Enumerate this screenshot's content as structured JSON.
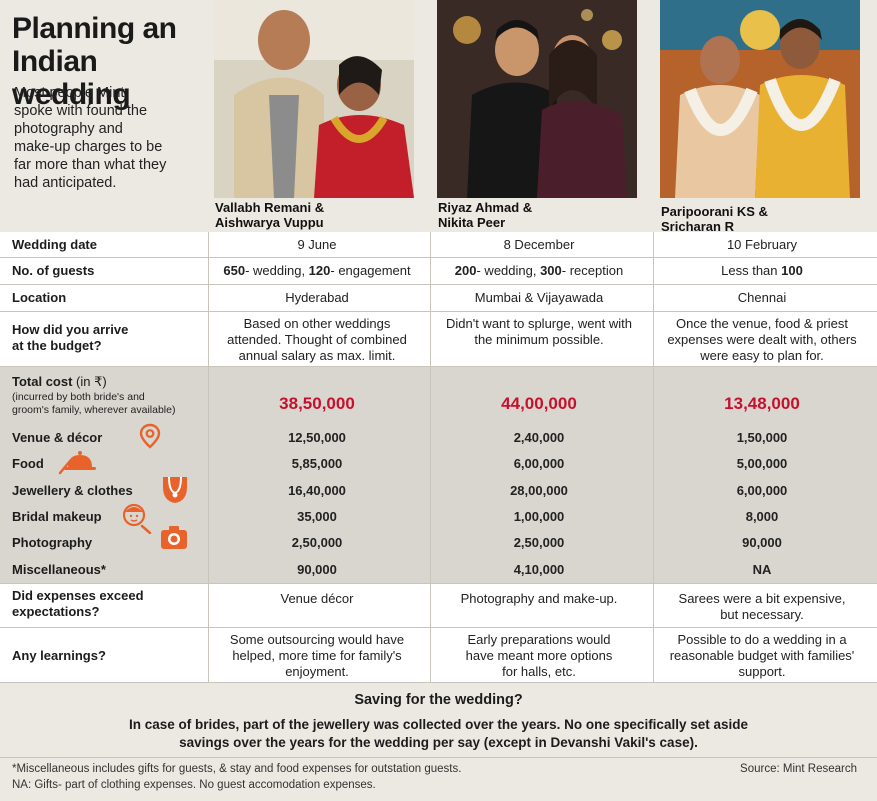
{
  "header": {
    "title": "Planning an\nIndian wedding",
    "intro": "Most people Mint\nspoke with found the\nphotography and\nmake-up charges to be\nfar more than what they\nhad anticipated."
  },
  "couples": [
    {
      "name": "Vallabh Remani &\nAishwarya Vuppu"
    },
    {
      "name": "Riyaz Ahmad &\nNikita Peer"
    },
    {
      "name": "Paripoorani KS &\nSricharan R"
    }
  ],
  "rows": {
    "wedding_date": {
      "label": "Wedding date",
      "values": [
        "9 June",
        "8 December",
        "10 February"
      ]
    },
    "guests": {
      "label": "No. of guests",
      "c1": {
        "n1": "650",
        "t1": "- wedding, ",
        "n2": "120",
        "t2": "- engagement"
      },
      "c2": {
        "n1": "200",
        "t1": "- wedding, ",
        "n2": "300",
        "t2": "- reception"
      },
      "c3": {
        "t1": "Less than ",
        "n1": "100"
      }
    },
    "location": {
      "label": "Location",
      "values": [
        "Hyderabad",
        "Mumbai & Vijayawada",
        "Chennai"
      ]
    },
    "budget": {
      "label": "How did you arrive\nat the budget?",
      "values": [
        "Based on other weddings\nattended. Thought of combined\nannual salary as max. limit.",
        "Didn't want to splurge, went with\nthe minimum possible.",
        "Once the venue, food & priest\nexpenses were dealt with, others\nwere easy to plan for."
      ]
    },
    "total": {
      "label": "Total cost",
      "unit": " (in ₹)",
      "sub": "(incurred by both bride's and\ngroom's family, wherever available)",
      "values": [
        "38,50,000",
        "44,00,000",
        "13,48,000"
      ]
    },
    "venue": {
      "label": "Venue & décor",
      "values": [
        "12,50,000",
        "2,40,000",
        "1,50,000"
      ]
    },
    "food": {
      "label": "Food",
      "values": [
        "5,85,000",
        "6,00,000",
        "5,00,000"
      ]
    },
    "jewellery": {
      "label": "Jewellery & clothes",
      "values": [
        "16,40,000",
        "28,00,000",
        "6,00,000"
      ]
    },
    "makeup": {
      "label": "Bridal makeup",
      "values": [
        "35,000",
        "1,00,000",
        "8,000"
      ]
    },
    "photography": {
      "label": "Photography",
      "values": [
        "2,50,000",
        "2,50,000",
        "90,000"
      ]
    },
    "misc": {
      "label": "Miscellaneous*",
      "values": [
        "90,000",
        "4,10,000",
        "NA"
      ]
    },
    "exceed": {
      "label": "Did expenses exceed\nexpectations?",
      "values": [
        "Venue décor",
        "Photography and make-up.",
        "Sarees were a bit expensive,\nbut necessary."
      ]
    },
    "learnings": {
      "label": "Any learnings?",
      "values": [
        "Some outsourcing would have\nhelped, more time for family's\nenjoyment.",
        "Early preparations would\nhave meant more options\nfor halls, etc.",
        "Possible to do a wedding in a\nreasonable budget with families'\nsupport."
      ]
    }
  },
  "saving": {
    "title": "Saving for the wedding?",
    "text": "In case of brides, part of the jewellery was collected over the years. No one specifically set aside\nsavings over the years for the wedding per say (except in Devanshi Vakil's case)."
  },
  "footnotes": {
    "misc_note": "*Miscellaneous includes gifts for guests, & stay and food expenses for outstation guests.",
    "na_note": "NA: Gifts- part of clothing expenses. No guest accomodation expenses.",
    "source": "Source: Mint Research"
  },
  "colors": {
    "accent_red": "#c8102e",
    "icon_orange": "#e8632b",
    "grey_band": "#d9d6cf"
  },
  "icons": [
    "location-pin-icon",
    "food-cloche-icon",
    "necklace-icon",
    "bride-face-icon",
    "camera-icon"
  ]
}
